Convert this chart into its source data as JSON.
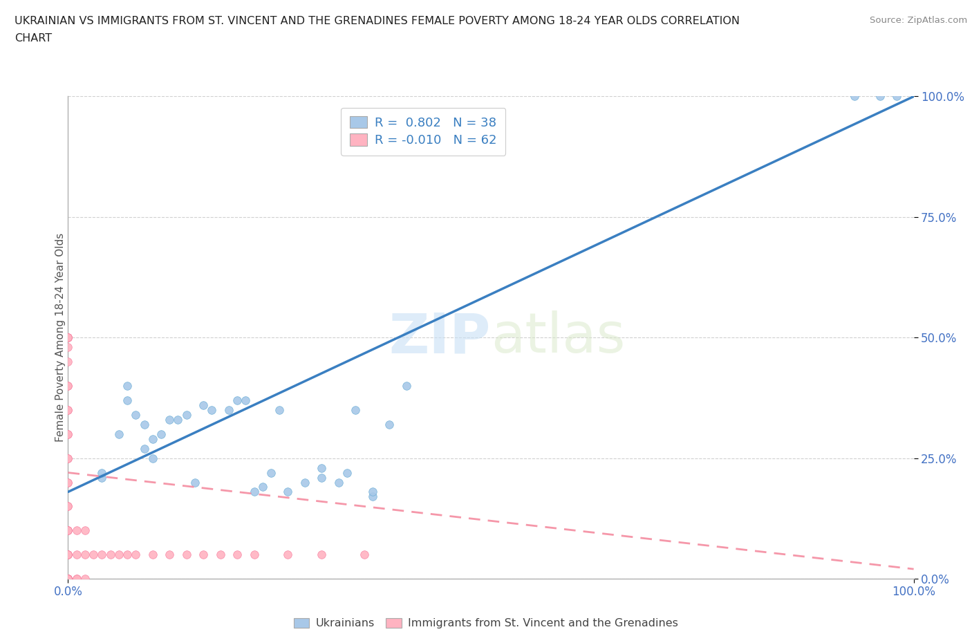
{
  "title_line1": "UKRAINIAN VS IMMIGRANTS FROM ST. VINCENT AND THE GRENADINES FEMALE POVERTY AMONG 18-24 YEAR OLDS CORRELATION",
  "title_line2": "CHART",
  "source": "Source: ZipAtlas.com",
  "ylabel": "Female Poverty Among 18-24 Year Olds",
  "watermark_zip": "ZIP",
  "watermark_atlas": "atlas",
  "legend_R_ukrainian": "0.802",
  "legend_N_ukrainian": 38,
  "legend_R_vincent": "-0.010",
  "legend_N_vincent": 62,
  "ukrainian_color": "#a8c8e8",
  "vincent_color": "#ffb3c1",
  "ukrainian_edge": "#6baed6",
  "vincent_edge": "#f77fa0",
  "ukrainian_line_color": "#3a7fc1",
  "vincent_line_color": "#f48ca0",
  "background_color": "#ffffff",
  "xlim": [
    0.0,
    1.0
  ],
  "ylim": [
    0.0,
    1.0
  ],
  "ytick_values": [
    0.0,
    0.25,
    0.5,
    0.75,
    1.0
  ],
  "ytick_labels": [
    "0.0%",
    "25.0%",
    "50.0%",
    "75.0%",
    "100.0%"
  ],
  "xtick_values": [
    0.0,
    1.0
  ],
  "xtick_labels": [
    "0.0%",
    "100.0%"
  ],
  "ukrainian_x": [
    0.04,
    0.04,
    0.06,
    0.07,
    0.07,
    0.08,
    0.09,
    0.09,
    0.1,
    0.1,
    0.11,
    0.12,
    0.13,
    0.14,
    0.15,
    0.16,
    0.17,
    0.19,
    0.2,
    0.21,
    0.22,
    0.23,
    0.24,
    0.25,
    0.26,
    0.28,
    0.3,
    0.3,
    0.32,
    0.33,
    0.34,
    0.36,
    0.36,
    0.38,
    0.4,
    0.93,
    0.96,
    0.98
  ],
  "ukrainian_y": [
    0.21,
    0.22,
    0.3,
    0.37,
    0.4,
    0.34,
    0.27,
    0.32,
    0.25,
    0.29,
    0.3,
    0.33,
    0.33,
    0.34,
    0.2,
    0.36,
    0.35,
    0.35,
    0.37,
    0.37,
    0.18,
    0.19,
    0.22,
    0.35,
    0.18,
    0.2,
    0.21,
    0.23,
    0.2,
    0.22,
    0.35,
    0.17,
    0.18,
    0.32,
    0.4,
    1.0,
    1.0,
    1.0
  ],
  "vincent_x": [
    0.0,
    0.0,
    0.0,
    0.0,
    0.0,
    0.0,
    0.0,
    0.0,
    0.0,
    0.0,
    0.0,
    0.0,
    0.0,
    0.0,
    0.0,
    0.0,
    0.0,
    0.0,
    0.0,
    0.0,
    0.0,
    0.0,
    0.0,
    0.0,
    0.0,
    0.0,
    0.0,
    0.0,
    0.0,
    0.0,
    0.0,
    0.0,
    0.0,
    0.0,
    0.0,
    0.0,
    0.0,
    0.0,
    0.0,
    0.01,
    0.01,
    0.01,
    0.01,
    0.02,
    0.02,
    0.02,
    0.03,
    0.04,
    0.05,
    0.06,
    0.07,
    0.08,
    0.1,
    0.12,
    0.14,
    0.16,
    0.18,
    0.2,
    0.22,
    0.26,
    0.3,
    0.35
  ],
  "vincent_y": [
    0.0,
    0.0,
    0.0,
    0.0,
    0.0,
    0.0,
    0.0,
    0.0,
    0.0,
    0.0,
    0.0,
    0.0,
    0.0,
    0.05,
    0.05,
    0.05,
    0.05,
    0.1,
    0.1,
    0.1,
    0.15,
    0.15,
    0.2,
    0.2,
    0.25,
    0.25,
    0.3,
    0.3,
    0.35,
    0.35,
    0.4,
    0.4,
    0.45,
    0.48,
    0.5,
    0.5,
    0.5,
    0.5,
    0.5,
    0.0,
    0.0,
    0.05,
    0.1,
    0.0,
    0.05,
    0.1,
    0.05,
    0.05,
    0.05,
    0.05,
    0.05,
    0.05,
    0.05,
    0.05,
    0.05,
    0.05,
    0.05,
    0.05,
    0.05,
    0.05,
    0.05,
    0.05
  ]
}
